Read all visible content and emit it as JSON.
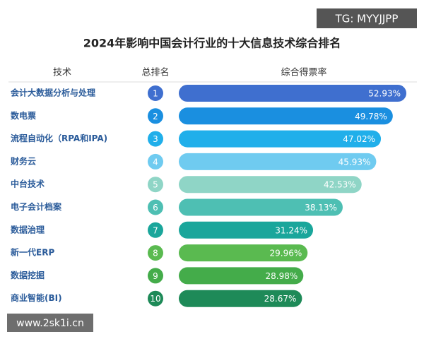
{
  "chart_data": {
    "type": "bar",
    "title": "2024年影响中国会计行业的十大信息技术综合排名",
    "headers": [
      "技术",
      "总排名",
      "综合得票率"
    ],
    "categories": [
      "会计大数据分析与处理",
      "数电票",
      "流程自动化（RPA和IPA)",
      "财务云",
      "中台技术",
      "电子会计档案",
      "数据治理",
      "新一代ERP",
      "数据挖掘",
      "商业智能(BI)"
    ],
    "ranks": [
      1,
      2,
      3,
      4,
      5,
      6,
      7,
      8,
      9,
      10
    ],
    "values": [
      52.93,
      49.78,
      47.02,
      45.93,
      42.53,
      38.13,
      31.24,
      29.96,
      28.98,
      28.67
    ],
    "value_labels": [
      "52.93%",
      "49.78%",
      "47.02%",
      "45.93%",
      "42.53%",
      "38.13%",
      "31.24%",
      "29.96%",
      "28.98%",
      "28.67%"
    ],
    "colors": [
      "#3f6fcf",
      "#1a8fe0",
      "#20afea",
      "#6fcbf0",
      "#8fd5c6",
      "#4ebfb3",
      "#1aa69b",
      "#5aba50",
      "#44ac4a",
      "#1e8a58"
    ],
    "watermarks": [
      "TG: MYYJJPP",
      "www.2sk1i.cn"
    ]
  }
}
